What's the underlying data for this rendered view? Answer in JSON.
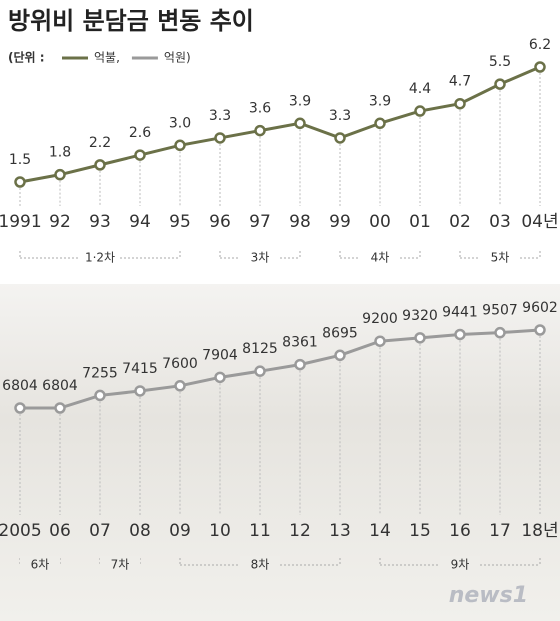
{
  "title": "방위비 분담금 변동 추이",
  "legend": {
    "prefix": "(단위 :",
    "separator": ",",
    "suffix": ")"
  },
  "watermark": "news1",
  "chart_data": [
    {
      "type": "line",
      "categories": [
        "1991",
        "92",
        "93",
        "94",
        "95",
        "96",
        "97",
        "98",
        "99",
        "00",
        "01",
        "02",
        "03",
        "04년"
      ],
      "series": [
        {
          "name": "억불",
          "color": "#6b7148",
          "values": [
            1.5,
            1.8,
            2.2,
            2.6,
            3.0,
            3.3,
            3.6,
            3.9,
            3.3,
            3.9,
            4.4,
            4.7,
            5.5,
            6.2
          ],
          "value_labels": [
            "1.5",
            "1.8",
            "2.2",
            "2.6",
            "3.0",
            "3.3",
            "3.6",
            "3.9",
            "3.3",
            "3.9",
            "4.4",
            "4.7",
            "5.5",
            "6.2"
          ]
        }
      ],
      "groups": [
        {
          "label": "1·2차",
          "start": "1991",
          "end": "95"
        },
        {
          "label": "3차",
          "start": "96",
          "end": "98"
        },
        {
          "label": "4차",
          "start": "99",
          "end": "01"
        },
        {
          "label": "5차",
          "start": "02",
          "end": "04년"
        }
      ]
    },
    {
      "type": "line",
      "categories": [
        "2005",
        "06",
        "07",
        "08",
        "09",
        "10",
        "11",
        "12",
        "13",
        "14",
        "15",
        "16",
        "17",
        "18년"
      ],
      "series": [
        {
          "name": "억원",
          "color": "#9a9a9a",
          "values": [
            6804,
            6804,
            7255,
            7415,
            7600,
            7904,
            8125,
            8361,
            8695,
            9200,
            9320,
            9441,
            9507,
            9602
          ]
        }
      ],
      "groups": [
        {
          "label": "6차",
          "start": "2005",
          "end": "06"
        },
        {
          "label": "7차",
          "start": "07",
          "end": "08"
        },
        {
          "label": "8차",
          "start": "09",
          "end": "13"
        },
        {
          "label": "9차",
          "start": "14",
          "end": "18년"
        }
      ]
    }
  ]
}
